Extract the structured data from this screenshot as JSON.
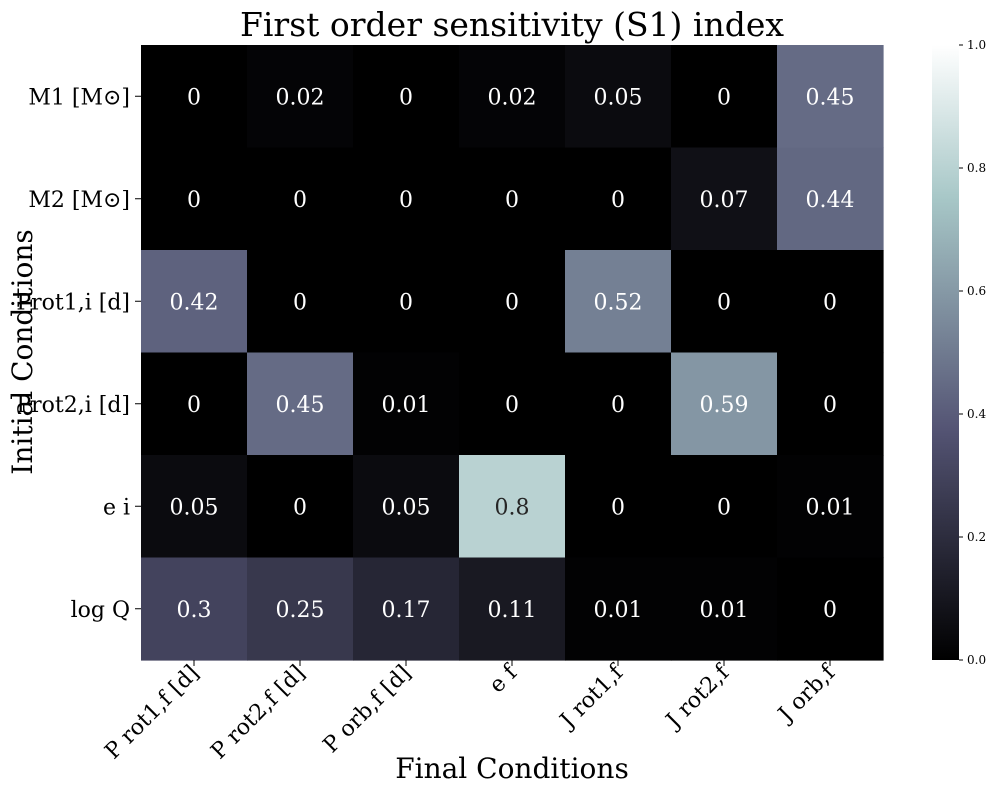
{
  "chart_data": {
    "type": "heatmap",
    "title": "First order sensitivity (S1) index",
    "xlabel": "Final Conditions",
    "ylabel": "Initial Conditions",
    "x_categories": [
      "P rot1,f [d]",
      "P rot2,f [d]",
      "P orb,f [d]",
      "e f",
      "J rot1,f",
      "J rot2,f",
      "J orb,f"
    ],
    "y_categories": [
      "M1 [M⊙]",
      "M2 [M⊙]",
      "Prot1,i [d]",
      "Prot2,i [d]",
      "e i",
      "log Q"
    ],
    "values": [
      [
        0,
        0.02,
        0,
        0.02,
        0.05,
        0,
        0.45
      ],
      [
        0,
        0,
        0,
        0,
        0,
        0.07,
        0.44
      ],
      [
        0.42,
        0,
        0,
        0,
        0.52,
        0,
        0
      ],
      [
        0,
        0.45,
        0.01,
        0,
        0,
        0.59,
        0
      ],
      [
        0.05,
        0,
        0.05,
        0.8,
        0,
        0,
        0.01
      ],
      [
        0.3,
        0.25,
        0.17,
        0.11,
        0.01,
        0.01,
        0
      ]
    ],
    "value_labels": [
      [
        "0",
        "0.02",
        "0",
        "0.02",
        "0.05",
        "0",
        "0.45"
      ],
      [
        "0",
        "0",
        "0",
        "0",
        "0",
        "0.07",
        "0.44"
      ],
      [
        "0.42",
        "0",
        "0",
        "0",
        "0.52",
        "0",
        "0"
      ],
      [
        "0",
        "0.45",
        "0.01",
        "0",
        "0",
        "0.59",
        "0"
      ],
      [
        "0.05",
        "0",
        "0.05",
        "0.8",
        "0",
        "0",
        "0.01"
      ],
      [
        "0.3",
        "0.25",
        "0.17",
        "0.11",
        "0.01",
        "0.01",
        "0"
      ]
    ],
    "colorbar": {
      "colormap": "bone",
      "vmin": 0.0,
      "vmax": 1.0,
      "ticks": [
        "0.0",
        "0.2",
        "0.4",
        "0.6",
        "0.8",
        "1.0"
      ]
    }
  }
}
